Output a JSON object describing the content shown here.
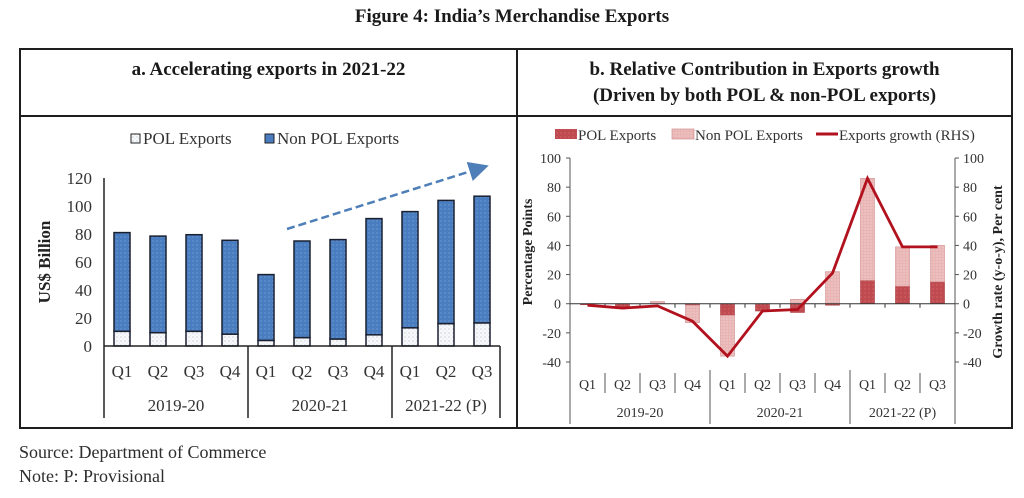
{
  "figure_title": "Figure 4: India’s Merchandise Exports",
  "source": "Source: Department of Commerce",
  "note": "Note: P: Provisional",
  "colors": {
    "pol_left": "#f4f6f8",
    "nonpol_left": "#4a7cc0",
    "bar_border": "#1a2030",
    "trend_arrow": "#4f7fb8",
    "pol_right": "#bf4a4f",
    "nonpol_right": "#e9b4b4",
    "line_right": "#b2111e"
  },
  "chart_data": [
    {
      "type": "bar",
      "stacked": true,
      "panel_title": "a. Accelerating exports in 2021-22",
      "ylabel": "US$ Billion",
      "ylim": [
        0,
        120
      ],
      "yticks": [
        "0",
        "20",
        "40",
        "60",
        "80",
        "100",
        "120"
      ],
      "legend": [
        "POL Exports",
        "Non POL Exports"
      ],
      "legend_position": "top",
      "categories": [
        "Q1",
        "Q2",
        "Q3",
        "Q4",
        "Q1",
        "Q2",
        "Q3",
        "Q4",
        "Q1",
        "Q2",
        "Q3"
      ],
      "groups": [
        {
          "label": "2019-20",
          "count": 4
        },
        {
          "label": "2020-21",
          "count": 4
        },
        {
          "label": "2021-22 (P)",
          "count": 3
        }
      ],
      "series": [
        {
          "name": "POL Exports",
          "values": [
            10.5,
            9.5,
            10.5,
            8.5,
            4,
            6,
            5,
            8,
            13,
            16,
            16.5
          ]
        },
        {
          "name": "Non POL Exports",
          "values": [
            70.5,
            69,
            69,
            67,
            47,
            69,
            71,
            83,
            83,
            88,
            90.5
          ]
        }
      ],
      "annotation": "upward dashed trend arrow from 2020-21 Q2 to 2021-22 Q3"
    },
    {
      "type": "bar+line",
      "stacked": true,
      "panel_title_line1": "b. Relative Contribution in Exports growth",
      "panel_title_line2": "(Driven by both POL & non-POL exports)",
      "ylabel": "Percentage Points",
      "ylabel_right": "Growth rate (y-o-y), Per cent",
      "ylim": [
        -40,
        100
      ],
      "ylim_right": [
        -40,
        100
      ],
      "yticks": [
        "-40",
        "-20",
        "0",
        "20",
        "40",
        "60",
        "80",
        "100"
      ],
      "legend": [
        "POL Exports",
        "Non POL Exports",
        "Exports growth (RHS)"
      ],
      "legend_position": "top",
      "categories": [
        "Q1",
        "Q2",
        "Q3",
        "Q4",
        "Q1",
        "Q2",
        "Q3",
        "Q4",
        "Q1",
        "Q2",
        "Q3"
      ],
      "groups": [
        {
          "label": "2019-20",
          "count": 4
        },
        {
          "label": "2020-21",
          "count": 4
        },
        {
          "label": "2021-22 (P)",
          "count": 3
        }
      ],
      "series": [
        {
          "name": "POL Exports",
          "values": [
            -0.5,
            -3,
            0,
            -1,
            -8,
            -5,
            -6,
            -1,
            16,
            12,
            15
          ]
        },
        {
          "name": "Non POL Exports",
          "values": [
            0,
            0,
            1.5,
            -12,
            -28,
            0,
            3,
            22,
            70,
            27,
            25
          ]
        },
        {
          "name": "Exports growth (RHS)",
          "axis": "right",
          "values": [
            -1,
            -3,
            -1.5,
            -12,
            -36,
            -5,
            -4,
            21,
            86,
            39,
            39
          ]
        }
      ]
    }
  ]
}
